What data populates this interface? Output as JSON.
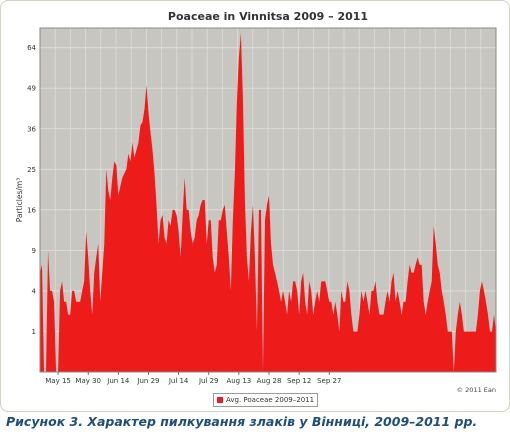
{
  "chart_data": {
    "type": "area",
    "title": "Poaceae in Vinnitsa 2009 – 2011",
    "ylabel": "Particles/m³",
    "xlabel": "",
    "y_scale": "sqrt",
    "y_ticks": [
      1,
      4,
      9,
      16,
      25,
      36,
      49,
      64
    ],
    "ylim": [
      0,
      72
    ],
    "x_tick_labels": [
      "May 15",
      "May 30",
      "Jun 14",
      "Jun 29",
      "Jul 14",
      "Jul 29",
      "Aug 13",
      "Aug 28",
      "Sep 12",
      "Sep 27"
    ],
    "grid": true,
    "legend_position": "bottom-center",
    "colors": {
      "series": "#ee1b1b",
      "plot_background": "#c8c6c0",
      "grid": "#e2e0da"
    },
    "series": [
      {
        "name": "Avg. Poaceae 2009–2011",
        "x_start": "May 6",
        "x_end": "Sep 30",
        "values": [
          6,
          7,
          0,
          0,
          9,
          4,
          4,
          3,
          0,
          0,
          4,
          5,
          3,
          3,
          2,
          2,
          4,
          4,
          3,
          3,
          3,
          4,
          5,
          12,
          8,
          4,
          2,
          6,
          8,
          10,
          3,
          6,
          10,
          25,
          20,
          18,
          23,
          27,
          26,
          19,
          21,
          23,
          24,
          25,
          29,
          27,
          32,
          28,
          30,
          32,
          37,
          38,
          42,
          50,
          41,
          35,
          30,
          24,
          17,
          10,
          14,
          15,
          11,
          10,
          14,
          13,
          16,
          16,
          15,
          12,
          8,
          15,
          23,
          16,
          16,
          12,
          10,
          11,
          14,
          15,
          17,
          18,
          18,
          10,
          14,
          14,
          8,
          6,
          7,
          14,
          14,
          16,
          17,
          12,
          8,
          4,
          14,
          24,
          44,
          60,
          70,
          46,
          18,
          8,
          5,
          12,
          17,
          8,
          1,
          16,
          16,
          0,
          14,
          17,
          19,
          10,
          7,
          6,
          5,
          4,
          3,
          4,
          3,
          2,
          4,
          3,
          5,
          5,
          4,
          2,
          5,
          6,
          3,
          2,
          5,
          4,
          2,
          3,
          4,
          3,
          5,
          5,
          5,
          4,
          3,
          3,
          2,
          3,
          2,
          1,
          4,
          3,
          3,
          5,
          4,
          2,
          1,
          1,
          1,
          2,
          4,
          3,
          4,
          3,
          2,
          4,
          4,
          5,
          3,
          2,
          2,
          2,
          3,
          4,
          3,
          5,
          6,
          3,
          4,
          3,
          2,
          3,
          3,
          5,
          7,
          6,
          6,
          7,
          8,
          7,
          7,
          3,
          2,
          3,
          4,
          5,
          13,
          10,
          7,
          6,
          4,
          3,
          2,
          1,
          1,
          1,
          0,
          1,
          2,
          3,
          2,
          1,
          1,
          1,
          1,
          1,
          1,
          1,
          2,
          4,
          5,
          4,
          3,
          2,
          1,
          1,
          2,
          1
        ]
      }
    ],
    "credit": "© 2011 Ean"
  },
  "caption": "Рисунок 3. Характер пилкування злаків у Вінниці, 2009–2011 рр."
}
